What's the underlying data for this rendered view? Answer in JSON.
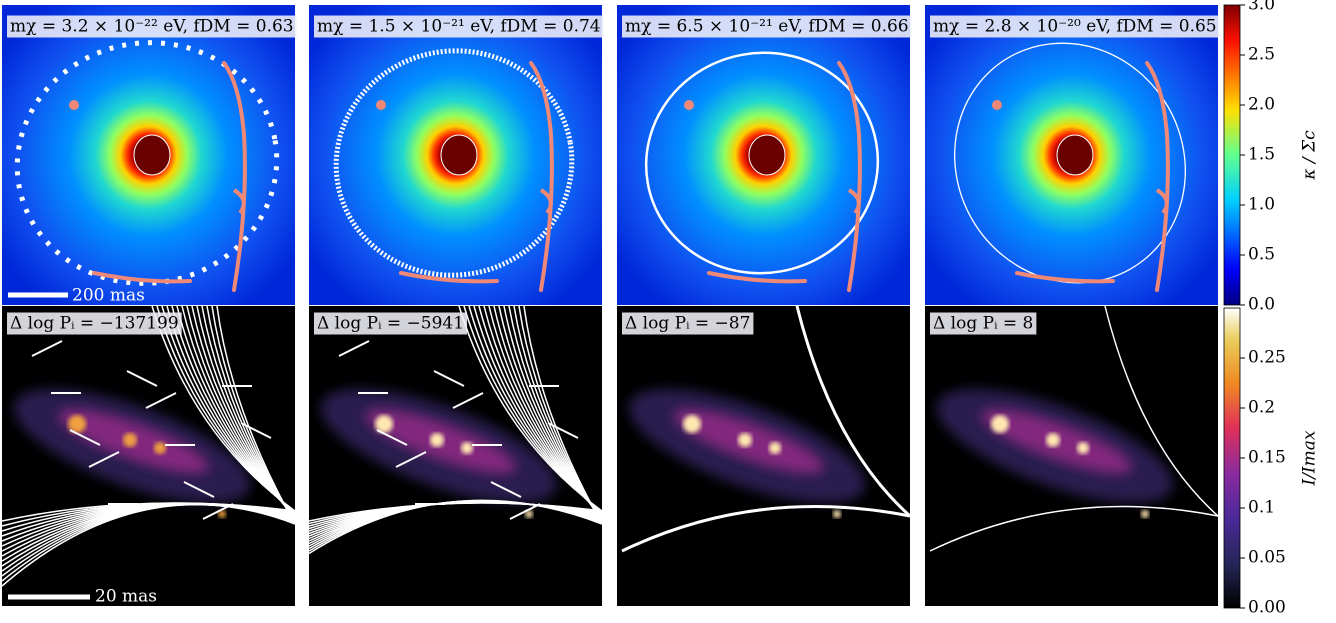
{
  "panels": [
    {
      "model_label": "mχ = 3.2 × 10⁻²² eV,  fDM = 0.63",
      "delta_label": "Δ log Pᵢ = −137199"
    },
    {
      "model_label": "mχ = 1.5 × 10⁻²¹ eV,  fDM = 0.74",
      "delta_label": "Δ log Pᵢ = −5941"
    },
    {
      "model_label": "mχ = 6.5 × 10⁻²¹ eV,  fDM = 0.66",
      "delta_label": "Δ log Pᵢ = −87"
    },
    {
      "model_label": "mχ = 2.8 × 10⁻²⁰ eV,  fDM = 0.65",
      "delta_label": "Δ log Pᵢ = 8"
    }
  ],
  "scale_bars": {
    "top": "200 mas",
    "bottom": "20 mas"
  },
  "colorbars": [
    {
      "label": "κ / Σc",
      "ylim": [
        0,
        3
      ],
      "yticks": [
        {
          "value": 0,
          "label": "0.0"
        },
        {
          "value": 0.5,
          "label": "0.5"
        },
        {
          "value": 1,
          "label": "1.0"
        },
        {
          "value": 1.5,
          "label": "1.5"
        },
        {
          "value": 2,
          "label": "2.0"
        },
        {
          "value": 2.5,
          "label": "2.5"
        },
        {
          "value": 3,
          "label": "3.0"
        }
      ]
    },
    {
      "label": "I/Imax",
      "ylim": [
        0,
        0.3
      ],
      "yticks": [
        {
          "value": 0,
          "label": "0.00"
        },
        0.05,
        0.1,
        0.15,
        0.2,
        0.25
      ]
    }
  ]
}
